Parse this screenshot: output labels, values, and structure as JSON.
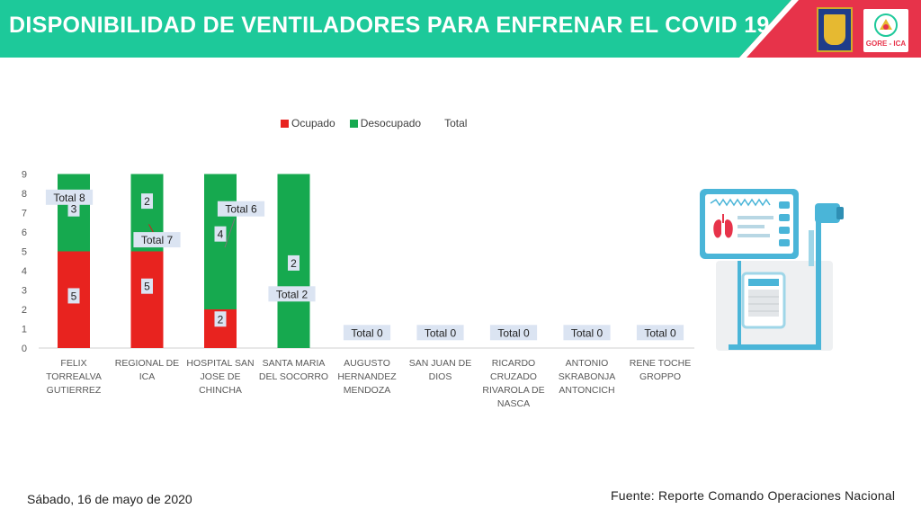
{
  "header": {
    "title": "DISPONIBILIDAD DE VENTILADORES PARA ENFRENAR EL COVID 19",
    "logo_right_text": "GORE - ICA",
    "colors": {
      "teal": "#1dc99a",
      "red": "#e7334a"
    }
  },
  "chart_data": {
    "type": "bar",
    "stacked": true,
    "categories": [
      "FELIX TORREALVA GUTIERREZ",
      "REGIONAL DE ICA",
      "HOSPITAL SAN JOSE DE CHINCHA",
      "SANTA MARIA DEL SOCORRO",
      "AUGUSTO HERNANDEZ MENDOZA",
      "SAN JUAN DE DIOS",
      "RICARDO CRUZADO RIVAROLA DE NASCA",
      "ANTONIO SKRABONJA ANTONCICH",
      "RENE TOCHE GROPPO"
    ],
    "category_lines": [
      [
        "FELIX",
        "TORREALVA",
        "GUTIERREZ"
      ],
      [
        "REGIONAL DE",
        "ICA"
      ],
      [
        "HOSPITAL SAN",
        "JOSE DE",
        "CHINCHA"
      ],
      [
        "SANTA MARIA",
        "DEL SOCORRO"
      ],
      [
        "AUGUSTO",
        "HERNANDEZ",
        "MENDOZA"
      ],
      [
        "SAN JUAN DE",
        "DIOS"
      ],
      [
        "RICARDO",
        "CRUZADO",
        "RIVAROLA DE",
        "NASCA"
      ],
      [
        "ANTONIO",
        "SKRABONJA",
        "ANTONCICH"
      ],
      [
        "RENE TOCHE",
        "GROPPO"
      ]
    ],
    "series": [
      {
        "name": "Ocupado",
        "color": "#e8231f",
        "values": [
          5,
          5,
          2,
          0,
          0,
          0,
          0,
          0,
          0
        ],
        "labels": [
          "5",
          "5",
          "2",
          "",
          "",
          "",
          "",
          "",
          ""
        ]
      },
      {
        "name": "Desocupado",
        "color": "#16a94f",
        "values": [
          3,
          2,
          4,
          2,
          0,
          0,
          0,
          0,
          0
        ],
        "labels": [
          "3",
          "2",
          "4",
          "2",
          "",
          "",
          "",
          "",
          ""
        ]
      },
      {
        "name": "Total",
        "values": [
          8,
          7,
          6,
          2,
          0,
          0,
          0,
          0,
          0
        ]
      }
    ],
    "total_labels": [
      "Total 8",
      "Total 7",
      "Total 6",
      "Total 2",
      "Total 0",
      "Total 0",
      "Total 0",
      "Total 0",
      "Total 0"
    ],
    "visible_bar_tops": [
      9,
      9,
      9,
      9,
      0,
      0,
      0,
      0,
      0
    ],
    "yticks": [
      "0",
      "1",
      "2",
      "3",
      "4",
      "5",
      "6",
      "7",
      "8",
      "9"
    ],
    "ylim": [
      0,
      9
    ],
    "grid": false,
    "legend_position": "top"
  },
  "footer": {
    "date": "Sábado, 16 de mayo de 2020",
    "source": "Fuente: Reporte Comando Operaciones Nacional"
  }
}
